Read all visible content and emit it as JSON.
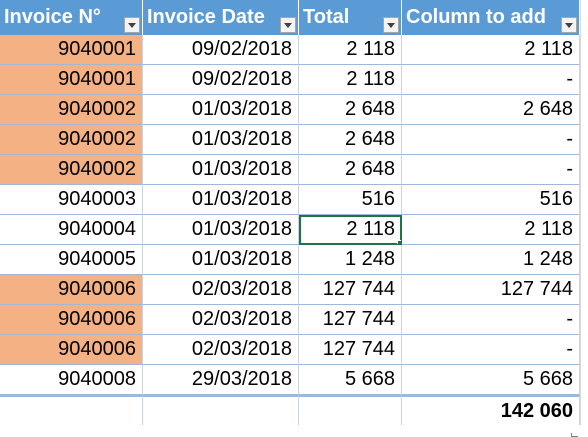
{
  "headers": [
    {
      "label": "Invoice N°"
    },
    {
      "label": "Invoice Date"
    },
    {
      "label": "Total"
    },
    {
      "label": "Column to add"
    }
  ],
  "rows": [
    {
      "invoice": "9040001",
      "date": "09/02/2018",
      "total": "2 118",
      "add": "2 118",
      "duplicate": true
    },
    {
      "invoice": "9040001",
      "date": "09/02/2018",
      "total": "2 118",
      "add": "-",
      "duplicate": true
    },
    {
      "invoice": "9040002",
      "date": "01/03/2018",
      "total": "2 648",
      "add": "2 648",
      "duplicate": true
    },
    {
      "invoice": "9040002",
      "date": "01/03/2018",
      "total": "2 648",
      "add": "-",
      "duplicate": true
    },
    {
      "invoice": "9040002",
      "date": "01/03/2018",
      "total": "2 648",
      "add": "-",
      "duplicate": true
    },
    {
      "invoice": "9040003",
      "date": "01/03/2018",
      "total": "516",
      "add": "516",
      "duplicate": false
    },
    {
      "invoice": "9040004",
      "date": "01/03/2018",
      "total": "2 118",
      "add": "2 118",
      "duplicate": false
    },
    {
      "invoice": "9040005",
      "date": "01/03/2018",
      "total": "1 248",
      "add": "1 248",
      "duplicate": false
    },
    {
      "invoice": "9040006",
      "date": "02/03/2018",
      "total": "127 744",
      "add": "127 744",
      "duplicate": true
    },
    {
      "invoice": "9040006",
      "date": "02/03/2018",
      "total": "127 744",
      "add": "-",
      "duplicate": true
    },
    {
      "invoice": "9040006",
      "date": "02/03/2018",
      "total": "127 744",
      "add": "-",
      "duplicate": true
    },
    {
      "invoice": "9040008",
      "date": "29/03/2018",
      "total": "5 668",
      "add": "5 668",
      "duplicate": false
    }
  ],
  "grand_total": "142 060",
  "colors": {
    "header_bg": "#5b9bd5",
    "duplicate_highlight": "#f4b183",
    "selection": "#217346"
  },
  "icons": {
    "filter": "filter-dropdown-icon"
  }
}
